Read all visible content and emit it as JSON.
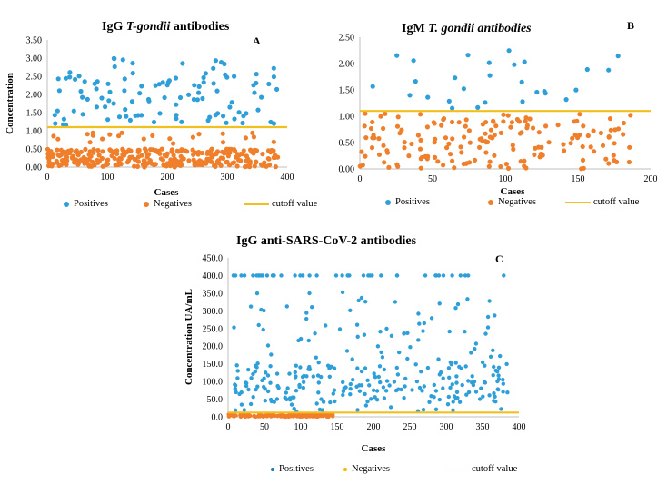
{
  "colors": {
    "positive": "#2E9FD8",
    "negative": "#F07F2B",
    "negative_c": "#F5A623",
    "cutoff": "#F2C01E",
    "axis": "#BFBFBF"
  },
  "chart_data": [
    {
      "id": "A",
      "type": "scatter",
      "title_prefix": "IgG ",
      "title_italic": "T-gondii",
      "title_suffix": " antibodies",
      "panel_letter": "A",
      "xlabel": "Cases",
      "ylabel": "Concentration",
      "xlim": [
        0,
        400
      ],
      "ylim": [
        0,
        3.5
      ],
      "xticks": [
        0,
        100,
        200,
        300,
        400
      ],
      "yticks": [
        0.0,
        0.5,
        1.0,
        1.5,
        2.0,
        2.5,
        3.0,
        3.5
      ],
      "ytick_decimals": 2,
      "cutoff": 1.1,
      "series": [
        {
          "name": "Positives",
          "n": 110,
          "x_range": [
            5,
            385
          ],
          "y_range": [
            1.15,
            3.0
          ],
          "seed": 11
        },
        {
          "name": "Negatives",
          "n": 330,
          "x_range": [
            0,
            385
          ],
          "y_range": [
            0.0,
            0.5
          ],
          "seed": 12,
          "extra_high": [
            0.6,
            1.05
          ]
        }
      ],
      "legend": [
        "Positives",
        "Negatives",
        "cutoff value"
      ]
    },
    {
      "id": "B",
      "type": "scatter",
      "title_prefix": "IgM ",
      "title_italic": "T. gondii antibodies",
      "title_suffix": "",
      "panel_letter": "B",
      "xlabel": "Cases",
      "ylabel": "",
      "xlim": [
        0,
        200
      ],
      "ylim": [
        0,
        2.5
      ],
      "xticks": [
        0,
        50,
        100,
        150,
        200
      ],
      "yticks": [
        0.0,
        0.5,
        1.0,
        1.5,
        2.0,
        2.5
      ],
      "ytick_decimals": 2,
      "cutoff": 1.1,
      "series": [
        {
          "name": "Positives",
          "n": 28,
          "x_range": [
            2,
            185
          ],
          "y_range": [
            1.15,
            2.3
          ],
          "seed": 21
        },
        {
          "name": "Negatives",
          "n": 170,
          "x_range": [
            0,
            190
          ],
          "y_range": [
            0.0,
            0.9
          ],
          "seed": 22,
          "extra_high": [
            0.9,
            1.05
          ]
        }
      ],
      "legend": [
        "Positives",
        "Negatives",
        "cutoff value"
      ]
    },
    {
      "id": "C",
      "type": "scatter",
      "title_prefix": "IgG anti-SARS-CoV-2 antibodies",
      "title_italic": "",
      "title_suffix": "",
      "panel_letter": "C",
      "xlabel": "Cases",
      "ylabel": "Concentration UA/mL",
      "xlim": [
        0,
        400
      ],
      "ylim": [
        0,
        450
      ],
      "xticks": [
        0,
        50,
        100,
        150,
        200,
        250,
        300,
        350,
        400
      ],
      "yticks": [
        0,
        50,
        100,
        150,
        200,
        250,
        300,
        350,
        400,
        450
      ],
      "ytick_decimals": 1,
      "cutoff": 12,
      "series": [
        {
          "name": "Positives",
          "n": 330,
          "x_range": [
            5,
            385
          ],
          "y_range": [
            15,
            400
          ],
          "seed": 31,
          "cap": 400
        },
        {
          "name": "Negatives",
          "n": 150,
          "x_range": [
            0,
            145
          ],
          "y_range": [
            0,
            8
          ],
          "seed": 32
        }
      ],
      "legend": [
        "Positives",
        "Negatives",
        "cutoff value"
      ]
    }
  ]
}
